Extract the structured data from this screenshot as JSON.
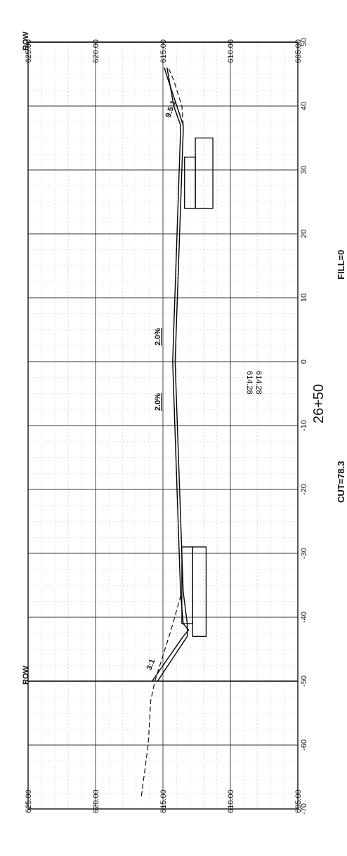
{
  "drawing": {
    "station": "26+50",
    "cut_label": "CUT=78.3",
    "fill_label": "FILL=0",
    "centerline_elev_left": "614.28",
    "centerline_elev_right": "614.28",
    "row_label_left": "ROW",
    "row_label_right": "ROW",
    "slope_left": "2.0%",
    "slope_right": "2.0%",
    "sideslope_left": "3:1",
    "sideslope_right": "9.5:1"
  },
  "axes": {
    "offset_ticks": [
      -70,
      -60,
      -50,
      -40,
      -30,
      -20,
      -10,
      0,
      10,
      20,
      30,
      40,
      50
    ],
    "offset_tick_labels": [
      "-70",
      "-60",
      "-50",
      "-40",
      "-30",
      "-20",
      "-10",
      "0",
      "10",
      "20",
      "30",
      "40",
      "50"
    ],
    "elev_ticks": [
      605,
      610,
      615,
      620,
      625
    ],
    "elev_tick_labels": [
      "605.00",
      "610.00",
      "615.00",
      "620.00",
      "625.00"
    ],
    "offset_range": [
      -70,
      50
    ],
    "elev_range": [
      605,
      625
    ],
    "grid": true
  },
  "chart_data": {
    "type": "line",
    "x_axis": "offset",
    "y_axis": "elevation",
    "xlim": [
      -70,
      50
    ],
    "ylim": [
      605,
      625
    ],
    "row_offsets": [
      -50,
      50
    ],
    "series": [
      {
        "style": "dashed",
        "x": [
          -68,
          -60,
          -53,
          -50,
          -42,
          -36
        ],
        "y": [
          616.6,
          616.1,
          615.9,
          615.6,
          614.4,
          613.6
        ]
      },
      {
        "style": "dashed",
        "x": [
          37,
          40,
          44,
          46
        ],
        "y": [
          613.5,
          613.6,
          614.2,
          614.6
        ]
      },
      {
        "style": "solid",
        "x": [
          -50,
          -43,
          -42,
          -41,
          -36,
          0,
          36,
          37,
          40,
          46
        ],
        "y": [
          615.8,
          613.5,
          613.1,
          613.5,
          613.7,
          614.28,
          613.7,
          613.7,
          614.2,
          614.7
        ]
      },
      {
        "style": "solid",
        "x": [
          -50,
          -43,
          -41,
          -36,
          0,
          36,
          37,
          44,
          46
        ],
        "y": [
          615.4,
          613.2,
          613.2,
          613.5,
          614.1,
          613.5,
          613.5,
          614.6,
          614.9
        ]
      }
    ],
    "structures": [
      {
        "x": [
          -43,
          -29
        ],
        "y": [
          611.8,
          612.8
        ]
      },
      {
        "x": [
          -41,
          -29
        ],
        "y": [
          612.8,
          613.6
        ]
      },
      {
        "x": [
          24,
          35
        ],
        "y": [
          611.3,
          612.6
        ]
      },
      {
        "x": [
          24,
          32
        ],
        "y": [
          612.6,
          613.4
        ]
      }
    ]
  }
}
